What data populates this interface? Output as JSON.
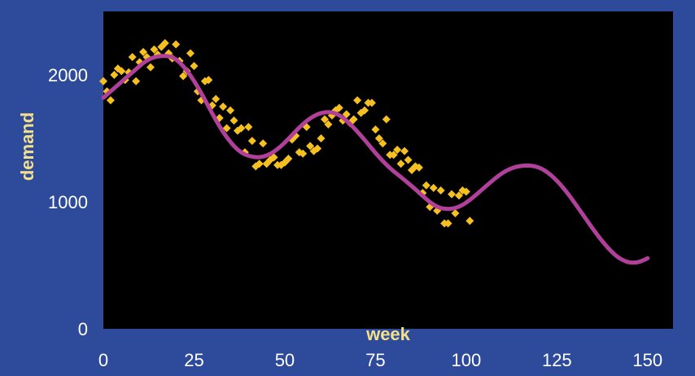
{
  "colors": {
    "background": "#2d4a9b",
    "plot_area": "#000000",
    "tick_text": "#ffffff",
    "axis_title": "#f5e08a",
    "observed_points": "#f5c020",
    "fitted_curve": "#b0409a"
  },
  "chart_data": {
    "type": "scatter",
    "title": "",
    "xlabel": "week",
    "ylabel": "demand",
    "xlim": [
      0,
      157
    ],
    "ylim": [
      0,
      2500
    ],
    "xticks": [
      0,
      25,
      50,
      75,
      100,
      125,
      150
    ],
    "yticks": [
      0,
      1000,
      2000
    ],
    "xtick_labels": [
      "0",
      "25",
      "50",
      "75",
      "100",
      "125",
      "150"
    ],
    "ytick_labels": [
      "0",
      "1000",
      "2000"
    ],
    "grid": false,
    "legend": "none",
    "series": [
      {
        "type": "scatter",
        "marker": "diamond",
        "color": "#f5c020",
        "points": [
          [
            0,
            1950
          ],
          [
            1,
            1870
          ],
          [
            2,
            1800
          ],
          [
            3,
            2000
          ],
          [
            4,
            2050
          ],
          [
            5,
            2030
          ],
          [
            6,
            1960
          ],
          [
            7,
            2020
          ],
          [
            8,
            2140
          ],
          [
            9,
            1950
          ],
          [
            10,
            2100
          ],
          [
            11,
            2180
          ],
          [
            12,
            2140
          ],
          [
            13,
            2060
          ],
          [
            14,
            2200
          ],
          [
            15,
            2160
          ],
          [
            16,
            2220
          ],
          [
            17,
            2250
          ],
          [
            18,
            2170
          ],
          [
            19,
            2130
          ],
          [
            20,
            2240
          ],
          [
            21,
            2110
          ],
          [
            22,
            1990
          ],
          [
            23,
            2030
          ],
          [
            24,
            2170
          ],
          [
            25,
            2070
          ],
          [
            26,
            1870
          ],
          [
            27,
            1800
          ],
          [
            28,
            1950
          ],
          [
            29,
            1960
          ],
          [
            30,
            1760
          ],
          [
            31,
            1810
          ],
          [
            32,
            1660
          ],
          [
            33,
            1750
          ],
          [
            34,
            1580
          ],
          [
            35,
            1720
          ],
          [
            36,
            1640
          ],
          [
            37,
            1560
          ],
          [
            38,
            1580
          ],
          [
            39,
            1390
          ],
          [
            40,
            1590
          ],
          [
            41,
            1480
          ],
          [
            42,
            1280
          ],
          [
            43,
            1300
          ],
          [
            44,
            1460
          ],
          [
            45,
            1300
          ],
          [
            46,
            1330
          ],
          [
            47,
            1350
          ],
          [
            48,
            1290
          ],
          [
            49,
            1290
          ],
          [
            50,
            1310
          ],
          [
            51,
            1340
          ],
          [
            52,
            1490
          ],
          [
            53,
            1520
          ],
          [
            54,
            1390
          ],
          [
            55,
            1380
          ],
          [
            56,
            1590
          ],
          [
            57,
            1440
          ],
          [
            58,
            1400
          ],
          [
            59,
            1420
          ],
          [
            60,
            1500
          ],
          [
            61,
            1650
          ],
          [
            62,
            1610
          ],
          [
            63,
            1680
          ],
          [
            64,
            1720
          ],
          [
            65,
            1740
          ],
          [
            66,
            1640
          ],
          [
            67,
            1690
          ],
          [
            68,
            1620
          ],
          [
            69,
            1650
          ],
          [
            70,
            1800
          ],
          [
            71,
            1700
          ],
          [
            72,
            1720
          ],
          [
            73,
            1780
          ],
          [
            74,
            1780
          ],
          [
            75,
            1570
          ],
          [
            76,
            1500
          ],
          [
            77,
            1460
          ],
          [
            78,
            1650
          ],
          [
            79,
            1370
          ],
          [
            80,
            1370
          ],
          [
            81,
            1410
          ],
          [
            82,
            1300
          ],
          [
            83,
            1400
          ],
          [
            84,
            1330
          ],
          [
            85,
            1250
          ],
          [
            86,
            1280
          ],
          [
            87,
            1270
          ],
          [
            88,
            1070
          ],
          [
            89,
            1130
          ],
          [
            90,
            960
          ],
          [
            91,
            1110
          ],
          [
            92,
            930
          ],
          [
            93,
            1090
          ],
          [
            94,
            830
          ],
          [
            95,
            830
          ],
          [
            96,
            1060
          ],
          [
            97,
            910
          ],
          [
            98,
            1050
          ],
          [
            99,
            1090
          ],
          [
            100,
            1080
          ],
          [
            101,
            850
          ]
        ]
      },
      {
        "type": "line",
        "color": "#b0409a",
        "x_start": 0,
        "x_step": 1,
        "y": [
          1820,
          1845,
          1870,
          1895,
          1920,
          1945,
          1970,
          1995,
          2020,
          2045,
          2070,
          2093,
          2113,
          2128,
          2138,
          2145,
          2149,
          2150,
          2147,
          2138,
          2122,
          2098,
          2068,
          2034,
          1995,
          1952,
          1905,
          1855,
          1803,
          1750,
          1697,
          1645,
          1596,
          1551,
          1510,
          1473,
          1440,
          1412,
          1390,
          1374,
          1363,
          1356,
          1352,
          1352,
          1356,
          1365,
          1378,
          1395,
          1416,
          1440,
          1467,
          1496,
          1526,
          1556,
          1585,
          1612,
          1636,
          1657,
          1675,
          1689,
          1699,
          1705,
          1707,
          1704,
          1696,
          1682,
          1663,
          1640,
          1613,
          1584,
          1553,
          1521,
          1488,
          1454,
          1419,
          1385,
          1353,
          1322,
          1293,
          1266,
          1241,
          1218,
          1195,
          1172,
          1148,
          1124,
          1099,
          1073,
          1047,
          1022,
          998,
          978,
          962,
          951,
          946,
          944,
          946,
          952,
          962,
          976,
          994,
          1015,
          1038,
          1062,
          1087,
          1112,
          1137,
          1161,
          1185,
          1207,
          1227,
          1244,
          1258,
          1269,
          1277,
          1282,
          1285,
          1286,
          1284,
          1279,
          1270,
          1257,
          1240,
          1219,
          1194,
          1166,
          1135,
          1101,
          1065,
          1027,
          987,
          947,
          906,
          865,
          824,
          784,
          745,
          708,
          673,
          640,
          610,
          583,
          561,
          544,
          531,
          523,
          521,
          523,
          530,
          542,
          556
        ]
      }
    ]
  }
}
